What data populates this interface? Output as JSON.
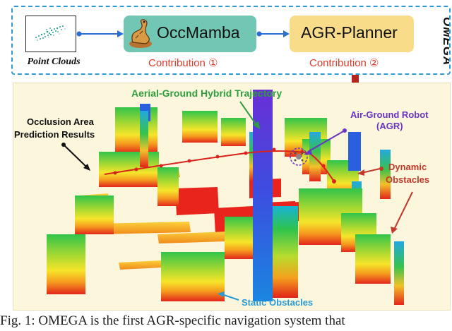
{
  "pipeline": {
    "point_clouds_label": "Point Clouds",
    "occmamba_label": "OccMamba",
    "agr_planner_label": "AGR-Planner",
    "contribution1": "Contribution ①",
    "contribution2": "Contribution ②",
    "omega_label": "OMEGA"
  },
  "scene": {
    "trajectory_label": "Aerial-Ground Hybrid Trajectory",
    "occlusion_label_line1": "Occlusion Area",
    "occlusion_label_line2": "Prediction Results",
    "robot_label_line1": "Air-Ground Robot",
    "robot_label_line2": "(AGR)",
    "dynamic_label_line1": "Dynamic",
    "dynamic_label_line2": "Obstacles",
    "static_label": "Static Obstacles"
  },
  "caption": "Fig. 1: OMEGA is the first AGR-specific navigation system that",
  "colors": {
    "dashed_border": "#2f9ad6",
    "occmamba_fill": "#71c7b4",
    "agr_fill": "#f8dc8a",
    "contribution_text": "#e03a2a",
    "arrow_blue": "#2a6fd0",
    "down_arrow": "#b3261e",
    "trajectory_label": "#2e9e3e",
    "robot_label": "#6a34c4",
    "dynamic_label": "#c0392b",
    "static_label": "#2a9ad6",
    "scene_bg": "#fcf6dc"
  }
}
